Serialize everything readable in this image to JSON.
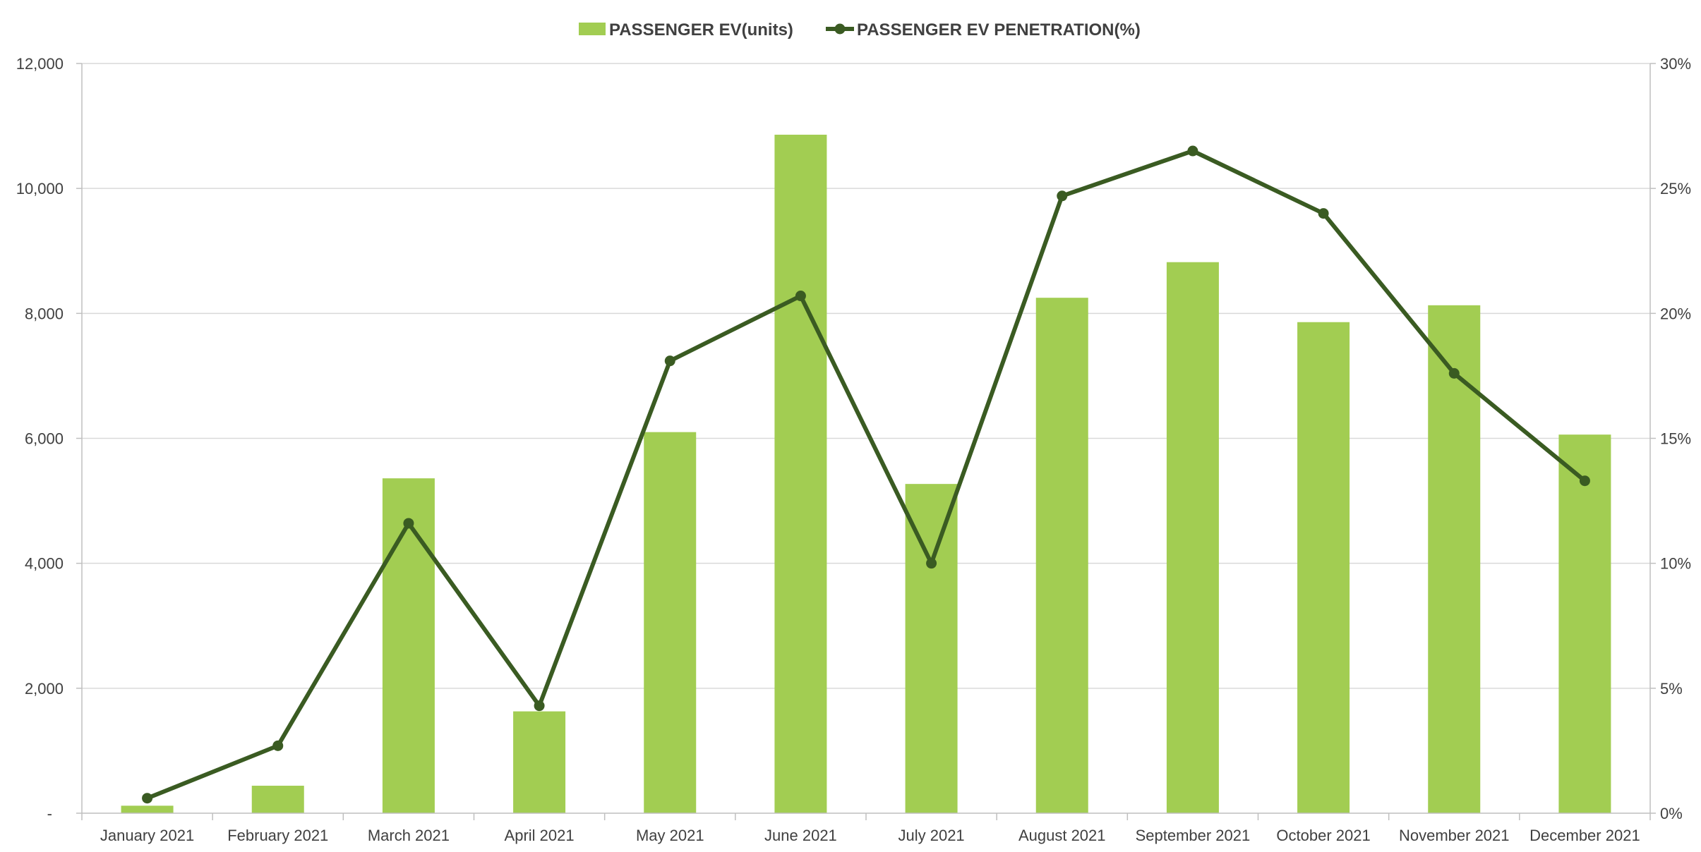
{
  "chart_data": {
    "type": "bar",
    "categories": [
      "January 2021",
      "February 2021",
      "March 2021",
      "April 2021",
      "May 2021",
      "June 2021",
      "July 2021",
      "August 2021",
      "September 2021",
      "October 2021",
      "November 2021",
      "December 2021"
    ],
    "series": [
      {
        "name": "PASSENGER EV(units)",
        "type": "bar",
        "axis": "left",
        "color": "#A2CD52",
        "values": [
          120,
          440,
          5360,
          1630,
          6100,
          10860,
          5270,
          8250,
          8820,
          7860,
          8130,
          6060
        ]
      },
      {
        "name": "PASSENGER EV PENETRATION(%)",
        "type": "line",
        "axis": "right",
        "color": "#3A5B22",
        "values": [
          0.6,
          2.7,
          11.6,
          4.3,
          18.1,
          20.7,
          10.0,
          24.7,
          26.5,
          24.0,
          17.6,
          13.3
        ]
      }
    ],
    "left_axis": {
      "ylim": [
        0,
        12000
      ],
      "ticks": [
        0,
        2000,
        4000,
        6000,
        8000,
        10000,
        12000
      ],
      "tick_labels": [
        "-",
        "2,000",
        "4,000",
        "6,000",
        "8,000",
        "10,000",
        "12,000"
      ]
    },
    "right_axis": {
      "ylim": [
        0,
        30
      ],
      "ticks": [
        0,
        5,
        10,
        15,
        20,
        25,
        30
      ],
      "tick_labels": [
        "0%",
        "5%",
        "10%",
        "15%",
        "20%",
        "25%",
        "30%"
      ]
    },
    "grid": true,
    "legend_position": "top-center"
  }
}
